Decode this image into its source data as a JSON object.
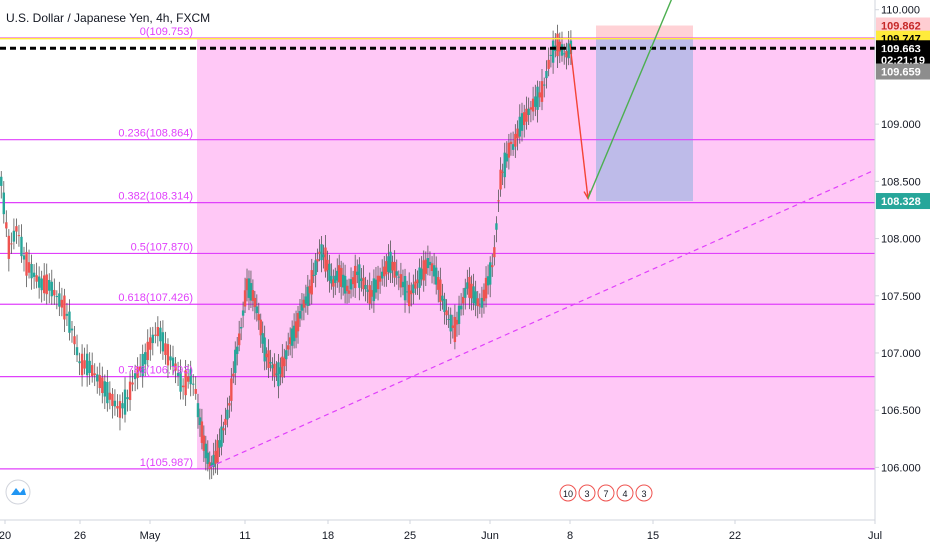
{
  "chart_data": {
    "type": "candlestick",
    "title": "U.S. Dollar / Japanese Yen, 4h, FXCM",
    "y_range": [
      105.75,
      110.05
    ],
    "y_ticks": [
      110.0,
      109.0,
      108.5,
      108.0,
      107.5,
      107.0,
      106.5,
      106.0
    ],
    "y_tick_labels": [
      "110.000",
      "109.000",
      "108.500",
      "108.000",
      "107.500",
      "107.000",
      "106.500",
      "106.000"
    ],
    "x_tick_labels": [
      "20",
      "26",
      "May",
      "11",
      "18",
      "25",
      "Jun",
      "8",
      "15",
      "22",
      "Jul"
    ],
    "colors": {
      "up": "#26a69a",
      "down": "#ef5350",
      "fib_fill": "#ffc8f6",
      "fib_line": "#e040fb"
    },
    "candle_series": [
      [
        108.5,
        107.9,
        108.1,
        107.8,
        107.7,
        107.6,
        107.6,
        107.5,
        107.4,
        107.2,
        106.9,
        106.9,
        106.8,
        106.7,
        106.6,
        106.5,
        106.6,
        106.8,
        106.9,
        107.1,
        107.2,
        107.0,
        106.9,
        106.7,
        106.8,
        106.6
      ],
      [
        106.5,
        106.2,
        106.0,
        106.1,
        106.3,
        106.5,
        106.9,
        107.2,
        107.6,
        107.5,
        107.3,
        107.0,
        106.9,
        106.8,
        106.9,
        107.1,
        107.2,
        107.4,
        107.5,
        107.7,
        107.9,
        107.8,
        107.6,
        107.7,
        107.6,
        107.5
      ],
      [
        107.6,
        107.7,
        107.6,
        107.5,
        107.6,
        107.7,
        107.8,
        107.7,
        107.6,
        107.5,
        107.6,
        107.7,
        107.8,
        107.7,
        107.5,
        107.3,
        107.2,
        107.4,
        107.6,
        107.5,
        107.4,
        107.6,
        107.8,
        108.5,
        108.7,
        108.9
      ],
      [
        108.8,
        109.0,
        109.1,
        109.2,
        109.3,
        109.6,
        109.7,
        109.6,
        109.7
      ]
    ],
    "fibonacci": {
      "from_date": "May 6",
      "to_date": "Jun 8",
      "levels": [
        {
          "ratio": "0",
          "price": 109.753,
          "label": "0(109.753)"
        },
        {
          "ratio": "0.236",
          "price": 108.864,
          "label": "0.236(108.864)"
        },
        {
          "ratio": "0.382",
          "price": 108.314,
          "label": "0.382(108.314)"
        },
        {
          "ratio": "0.5",
          "price": 107.87,
          "label": "0.5(107.870)"
        },
        {
          "ratio": "0.618",
          "price": 107.426,
          "label": "0.618(107.426)"
        },
        {
          "ratio": "0.786",
          "price": 106.793,
          "label": "0.786(106.793)"
        },
        {
          "ratio": "1",
          "price": 105.987,
          "label": "1(105.987)"
        }
      ]
    },
    "trendline": {
      "style": "dashed",
      "start": {
        "date": "May 7",
        "price": 106.0
      },
      "end": {
        "date": "Jul 1",
        "price": 108.6
      }
    },
    "horizontal_lines": [
      {
        "price": 109.747,
        "style": "solid",
        "color": "#ffeb3b"
      },
      {
        "price": 109.663,
        "style": "dashed",
        "color": "#000000"
      }
    ],
    "position": {
      "type": "long",
      "entry": 108.328,
      "target": 109.862,
      "from_date": "Jun 10",
      "to_date": "Jun 18"
    },
    "arrows": [
      {
        "color": "#f44336",
        "from": {
          "date": "Jun 8",
          "price": 109.7
        },
        "to": {
          "date": "Jun 9",
          "price": 108.35
        }
      },
      {
        "color": "#4caf50",
        "from": {
          "date": "Jun 9",
          "price": 108.35
        },
        "to": {
          "date": "Jun 16",
          "price": 110.1
        }
      }
    ],
    "price_tags": [
      {
        "text": "109.862",
        "bg": "#ffcdd2",
        "fg": "#c62828",
        "price": 109.862
      },
      {
        "text": "109.747",
        "bg": "#ffeb3b",
        "fg": "#000000",
        "price": 109.747
      },
      {
        "text": "109.663",
        "bg": "#000000",
        "fg": "#ffffff",
        "price": 109.663
      },
      {
        "text": "02:21:19",
        "bg": "#000000",
        "fg": "#ffffff",
        "price": 109.56
      },
      {
        "text": "109.659",
        "bg": "#8d8d8d",
        "fg": "#ffffff",
        "price": 109.46
      },
      {
        "text": "108.328",
        "bg": "#26a69a",
        "fg": "#ffffff",
        "price": 108.328
      }
    ],
    "event_badges": [
      "10",
      "3",
      "7",
      "4",
      "3"
    ]
  }
}
